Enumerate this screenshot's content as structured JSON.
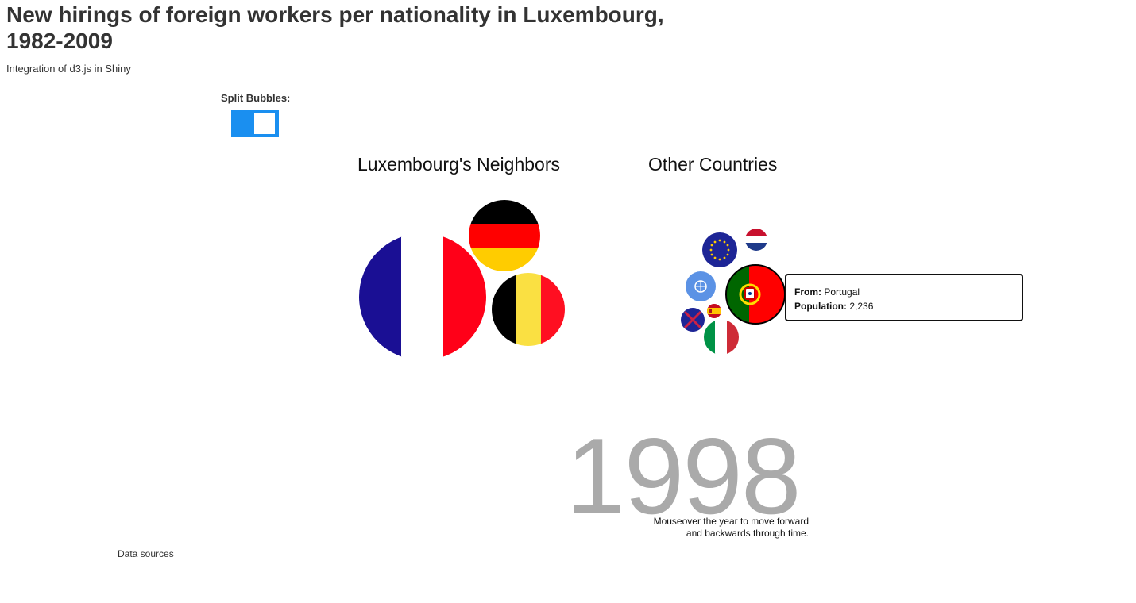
{
  "header": {
    "title": "New hirings of foreign workers per nationality in Luxembourg, 1982-2009",
    "subtitle": "Integration of d3.js in Shiny"
  },
  "controls": {
    "split_label": "Split Bubbles:",
    "split_on": true,
    "accent_color": "#1a8ff0"
  },
  "groups": {
    "neighbors_title": "Luxembourg's Neighbors",
    "others_title": "Other Countries"
  },
  "bubbles": {
    "neighbors": [
      {
        "flag": "france-flag-icon"
      },
      {
        "flag": "germany-flag-icon"
      },
      {
        "flag": "belgium-flag-icon"
      }
    ],
    "others": [
      {
        "flag": "eu-flag-icon"
      },
      {
        "flag": "netherlands-flag-icon"
      },
      {
        "flag": "un-flag-icon"
      },
      {
        "flag": "portugal-flag-icon"
      },
      {
        "flag": "spain-flag-icon"
      },
      {
        "flag": "stateless-flag-icon"
      },
      {
        "flag": "italy-flag-icon"
      }
    ]
  },
  "tooltip": {
    "from_label": "From:",
    "from_value": "Portugal",
    "population_label": "Population:",
    "population_value": "2,236"
  },
  "timeline": {
    "year": "1998",
    "hint_line1": "Mouseover the year to move forward",
    "hint_line2": "and backwards through time."
  },
  "footer": {
    "sources_label": "Data sources"
  }
}
